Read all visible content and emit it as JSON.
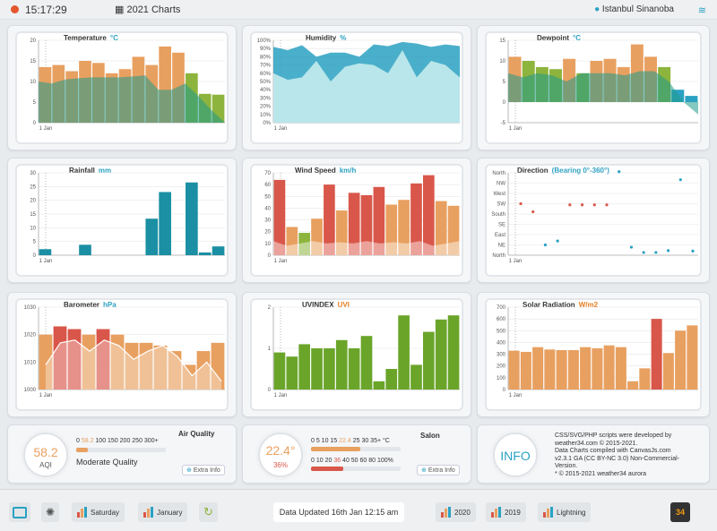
{
  "header": {
    "clock": "15:17:29",
    "title": "2021 Charts",
    "location": "Istanbul Sinanoba"
  },
  "temperature": {
    "title": "Temperature",
    "unit": "°C",
    "xlabel": "1 Jan",
    "yticks": [
      "20",
      "15",
      "10",
      "5",
      "0"
    ],
    "ymax": 20,
    "bars": [
      13.5,
      14,
      12.5,
      15,
      14.5,
      12,
      13,
      16,
      14,
      18.5,
      17,
      12,
      7,
      6.8
    ],
    "barColors": [
      "#e8a060",
      "#e8a060",
      "#e8a060",
      "#e8a060",
      "#e8a060",
      "#e8a060",
      "#e8a060",
      "#e8a060",
      "#e8a060",
      "#e8a060",
      "#e8a060",
      "#8db43c",
      "#8db43c",
      "#8db43c"
    ],
    "area": [
      10,
      9.5,
      10.5,
      10.8,
      11,
      11,
      11,
      11.2,
      11.5,
      8,
      8,
      9.5,
      6.5,
      3,
      0
    ]
  },
  "humidity": {
    "title": "Humidity",
    "unit": "%",
    "xlabel": "1 Jan",
    "yticks": [
      "100%",
      "90%",
      "80%",
      "70%",
      "60%",
      "50%",
      "40%",
      "30%",
      "20%",
      "10%",
      "0%"
    ],
    "upper": [
      92,
      88,
      94,
      80,
      85,
      85,
      80,
      95,
      93,
      98,
      96,
      92,
      95,
      93
    ],
    "lower": [
      60,
      52,
      55,
      75,
      50,
      68,
      72,
      70,
      60,
      88,
      55,
      75,
      70,
      55
    ]
  },
  "dewpoint": {
    "title": "Dewpoint",
    "unit": "°C",
    "xlabel": "1 Jan",
    "yticks": [
      "15",
      "10",
      "5",
      "0",
      "-5"
    ],
    "ymin": -5,
    "ymax": 15,
    "bars": [
      11,
      10,
      8.5,
      8,
      10.5,
      7,
      10,
      10.5,
      8.5,
      14,
      11,
      8.5,
      3,
      1.5
    ],
    "barColors": [
      "#e8a060",
      "#8db43c",
      "#8db43c",
      "#8db43c",
      "#e8a060",
      "#8db43c",
      "#e8a060",
      "#e8a060",
      "#e8a060",
      "#e8a060",
      "#e8a060",
      "#8db43c",
      "#2aa1c2",
      "#2aa1c2"
    ],
    "area": [
      7,
      6,
      7,
      6.5,
      5,
      7,
      7,
      7,
      6.5,
      7.5,
      7.5,
      5,
      0,
      -3
    ]
  },
  "rainfall": {
    "title": "Rainfall",
    "unit": "mm",
    "xlabel": "1 Jan",
    "yticks": [
      "30",
      "25",
      "20",
      "15",
      "10",
      "5",
      "0"
    ],
    "ymax": 30,
    "bars": [
      2.2,
      0,
      0,
      3.8,
      0,
      0,
      0,
      0,
      13.3,
      23,
      0,
      26.5,
      1,
      3.2
    ]
  },
  "wind": {
    "title": "Wind Speed",
    "unit": "km/h",
    "xlabel": "1 Jan",
    "yticks": [
      "70",
      "60",
      "50",
      "40",
      "30",
      "20",
      "10",
      "0"
    ],
    "ymax": 70,
    "bars": [
      64,
      24,
      19,
      31,
      60,
      38,
      53,
      51,
      58,
      43,
      47,
      61,
      68,
      46,
      42
    ],
    "barColors": [
      "#d9574a",
      "#e8a060",
      "#8db43c",
      "#e8a060",
      "#d9574a",
      "#e8a060",
      "#d9574a",
      "#d9574a",
      "#d9574a",
      "#e8a060",
      "#e8a060",
      "#d9574a",
      "#d9574a",
      "#e8a060",
      "#e8a060"
    ],
    "area": [
      12,
      8,
      10,
      12,
      10,
      11,
      10,
      12,
      10,
      11,
      10,
      12,
      8,
      10,
      12
    ]
  },
  "direction": {
    "title": "Direction",
    "unit": "(Bearing 0°-360°)",
    "xlabel": "1 Jan",
    "yticks": [
      "North",
      "NW",
      "West",
      "SW",
      "South",
      "SE",
      "East",
      "NE",
      "North"
    ],
    "points": [
      {
        "d": 225,
        "c": "#d9574a"
      },
      {
        "d": 190,
        "c": "#d9574a"
      },
      {
        "d": 45,
        "c": "#2aa1c2"
      },
      {
        "d": 62,
        "c": "#2aa1c2"
      },
      {
        "d": 220,
        "c": "#d9574a"
      },
      {
        "d": 220,
        "c": "#d9574a"
      },
      {
        "d": 220,
        "c": "#d9574a"
      },
      {
        "d": 220,
        "c": "#d9574a"
      },
      {
        "d": 365,
        "c": "#2aa1c2"
      },
      {
        "d": 35,
        "c": "#2aa1c2"
      },
      {
        "d": 12,
        "c": "#2aa1c2"
      },
      {
        "d": 12,
        "c": "#2aa1c2"
      },
      {
        "d": 20,
        "c": "#2aa1c2"
      },
      {
        "d": 330,
        "c": "#2aa1c2"
      },
      {
        "d": 18,
        "c": "#2aa1c2"
      }
    ]
  },
  "barometer": {
    "title": "Barometer",
    "unit": "hPa",
    "xlabel": "1 Jan",
    "yticks": [
      "1030",
      "1020",
      "1010",
      "1000"
    ],
    "ymin": 1000,
    "ymax": 1030,
    "bars": [
      1020,
      1023,
      1022,
      1020,
      1022,
      1020,
      1017,
      1017,
      1016,
      1014,
      1009,
      1014,
      1017
    ],
    "barColors": [
      "#e8a060",
      "#d9574a",
      "#d9574a",
      "#e8a060",
      "#d9574a",
      "#e8a060",
      "#e8a060",
      "#e8a060",
      "#e8a060",
      "#e8a060",
      "#e8a060",
      "#e8a060",
      "#e8a060"
    ],
    "line": [
      1009,
      1017,
      1018,
      1014,
      1018,
      1016,
      1011,
      1014,
      1016,
      1012,
      1005,
      1010,
      1003
    ]
  },
  "uvindex": {
    "title": "UVINDEX",
    "unit": "UVI",
    "xlabel": "1 Jan",
    "yticks": [
      "2",
      "1",
      "0"
    ],
    "ymax": 2,
    "bars": [
      0.9,
      0.8,
      1.1,
      1.0,
      1.0,
      1.2,
      1.0,
      1.3,
      0.2,
      0.5,
      1.8,
      0.6,
      1.4,
      1.7,
      1.8
    ]
  },
  "solar": {
    "title": "Solar Radiation",
    "unit": "W/m2",
    "xlabel": "1 Jan",
    "yticks": [
      "700",
      "600",
      "500",
      "400",
      "300",
      "200",
      "100",
      "0"
    ],
    "ymax": 700,
    "bars": [
      330,
      320,
      360,
      340,
      335,
      335,
      360,
      350,
      375,
      360,
      70,
      180,
      600,
      310,
      500,
      545
    ],
    "barColors": [
      "#e8a060",
      "#e8a060",
      "#e8a060",
      "#e8a060",
      "#e8a060",
      "#e8a060",
      "#e8a060",
      "#e8a060",
      "#e8a060",
      "#e8a060",
      "#e8a060",
      "#e8a060",
      "#d9574a",
      "#e8a060",
      "#e8a060",
      "#e8a060"
    ]
  },
  "aqi": {
    "title": "Air Quality",
    "value": "58.2",
    "label": "AQI",
    "scale": "0 ",
    "scale_hl": "58.2",
    "scale_rest": " 100 150 200 250 300+",
    "status": "Moderate Quality",
    "extra": "Extra Info",
    "bar_fraction": 0.13
  },
  "salon": {
    "title": "Salon",
    "temp": "22.4",
    "temp_unit": "°",
    "hum": "36%",
    "tscale": "0 5 10 15 ",
    "tscale_hl": "22.4",
    "tscale_rest": " 25 30 35+ °C",
    "hscale": "0 10 20 ",
    "hscale_hl": "36",
    "hscale_rest": " 40 50 60 80 100%",
    "extra": "Extra Info",
    "temp_fraction": 0.55,
    "hum_fraction": 0.36
  },
  "info": {
    "badge": "INFO",
    "lines": [
      "CSS/SVG/PHP scripts were developed by",
      "weather34.com © 2015-2021.",
      "Data Charts compiled with CanvasJs.com",
      "v2.3.1 GA (CC BY-NC 3.0) Non-Commercial-",
      "Version.",
      "* © 2015-2021 weather34 aurora"
    ]
  },
  "footer": {
    "saturday": "Saturday",
    "january": "January",
    "updated": "Data Updated 16th Jan 12:15 am",
    "y2020": "2020",
    "y2019": "2019",
    "lightning": "Lightning",
    "logo": "34"
  }
}
